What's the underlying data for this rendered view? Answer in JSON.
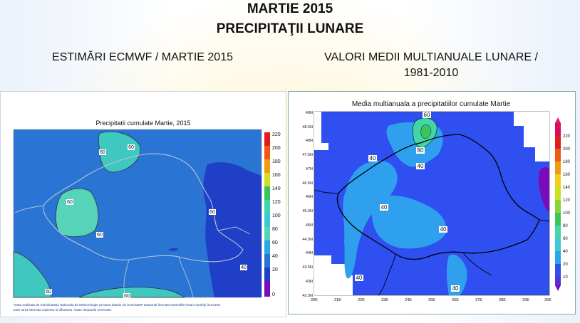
{
  "header": {
    "title_line1": "MARTIE 2015",
    "title_line2": "PRECIPITAŢII LUNARE",
    "left_heading": "ESTIMĂRI ECMWF / MARTIE 2015",
    "right_heading_line1": "VALORI MEDII MULTIANUALE LUNARE /",
    "right_heading_line2": "1981-2010"
  },
  "left_map": {
    "title": "Precipitatii cumulate Martie, 2015",
    "scale_ticks": [
      "220",
      "200",
      "180",
      "160",
      "140",
      "120",
      "100",
      "80",
      "60",
      "40",
      "20",
      "0"
    ],
    "contour_labels": [
      "60",
      "60",
      "60",
      "60",
      "60",
      "60",
      "40",
      "40",
      "60",
      "60"
    ],
    "footnote_line1": "Harta realizata de Administratia Nationala de Meteorologie pe baza datelor de la ECMWF seasonal forecast ensemble mean monthly forecasts",
    "footnote_line2": "Este strict interzisa copierea si difuzarea. Toate drepturile rezervate."
  },
  "right_map": {
    "title": "Media multianuala a precipitatiilor cumulate Martie",
    "lat_ticks": [
      "49N",
      "48.5N",
      "48N",
      "47.5N",
      "47N",
      "46.5N",
      "46N",
      "45.5N",
      "45N",
      "44.5N",
      "44N",
      "43.5N",
      "43N",
      "42.5N"
    ],
    "lon_ticks": [
      "20E",
      "21E",
      "22E",
      "23E",
      "24E",
      "25E",
      "26E",
      "27E",
      "28E",
      "29E",
      "30E"
    ],
    "scale_ticks": [
      "220",
      "200",
      "180",
      "160",
      "140",
      "120",
      "100",
      "80",
      "60",
      "40",
      "20",
      "10"
    ],
    "contour_labels": [
      "60",
      "80",
      "40",
      "40",
      "40",
      "40",
      "40",
      "40"
    ]
  },
  "colors": {
    "ramp": [
      "#7a0bb8",
      "#5a2fd3",
      "#2b43d6",
      "#1f6fe0",
      "#2ba6e6",
      "#3cc9d6",
      "#41d5a8",
      "#39c45e",
      "#8ad13a",
      "#cde21d",
      "#f2d01a",
      "#f29a14",
      "#ef5a12",
      "#e51b1b",
      "#d90d5a",
      "#e0187f"
    ],
    "base_left": "#2a74d4",
    "base_right": "#2f4ff0"
  }
}
